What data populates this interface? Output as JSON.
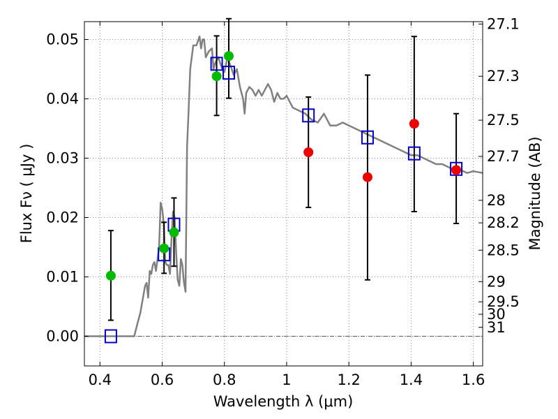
{
  "chart_data": {
    "type": "scatter",
    "xlabel": "Wavelength  λ (μm)",
    "ylabel": "Flux  Fν  ( μJy )",
    "ylabel_right": "Magnitude (AB)",
    "xlim": [
      0.35,
      1.63
    ],
    "ylim": [
      -0.005,
      0.053
    ],
    "grid": true,
    "x_ticks": [
      0.4,
      0.6,
      0.8,
      1.0,
      1.2,
      1.4,
      1.6
    ],
    "x_tick_labels": [
      "0.4",
      "0.6",
      "0.8",
      "1",
      "1.2",
      "1.4",
      "1.6"
    ],
    "y_ticks": [
      0.0,
      0.01,
      0.02,
      0.03,
      0.04,
      0.05
    ],
    "y_tick_labels": [
      "0.00",
      "0.01",
      "0.02",
      "0.03",
      "0.04",
      "0.05"
    ],
    "right_ticks": [
      {
        "label": "27.1",
        "flux": 0.0526
      },
      {
        "label": "27.3",
        "flux": 0.0438
      },
      {
        "label": "27.5",
        "flux": 0.0364
      },
      {
        "label": "27.7",
        "flux": 0.0303
      },
      {
        "label": "28",
        "flux": 0.0229
      },
      {
        "label": "28.2",
        "flux": 0.0191
      },
      {
        "label": "28.5",
        "flux": 0.0145
      },
      {
        "label": "29",
        "flux": 0.0092
      },
      {
        "label": "29.5",
        "flux": 0.0058
      },
      {
        "label": "30",
        "flux": 0.0037
      },
      {
        "label": "31",
        "flux": 0.0015
      }
    ],
    "zero_line": 0.0,
    "colors": {
      "model": "#808080",
      "model_box": "#0000cc",
      "green": "#00bb00",
      "red": "#ee0000",
      "errorbar": "#000000",
      "grid": "#888888"
    },
    "model_sed": [
      [
        0.35,
        0.0
      ],
      [
        0.5,
        0.0
      ],
      [
        0.51,
        0.0
      ],
      [
        0.52,
        0.002
      ],
      [
        0.53,
        0.004
      ],
      [
        0.545,
        0.0085
      ],
      [
        0.55,
        0.009
      ],
      [
        0.555,
        0.0065
      ],
      [
        0.56,
        0.011
      ],
      [
        0.565,
        0.0105
      ],
      [
        0.57,
        0.012
      ],
      [
        0.575,
        0.0125
      ],
      [
        0.58,
        0.011
      ],
      [
        0.59,
        0.015
      ],
      [
        0.595,
        0.0225
      ],
      [
        0.6,
        0.0215
      ],
      [
        0.605,
        0.019
      ],
      [
        0.61,
        0.0125
      ],
      [
        0.615,
        0.012
      ],
      [
        0.62,
        0.012
      ],
      [
        0.625,
        0.0105
      ],
      [
        0.63,
        0.0165
      ],
      [
        0.635,
        0.021
      ],
      [
        0.64,
        0.02
      ],
      [
        0.645,
        0.014
      ],
      [
        0.65,
        0.0095
      ],
      [
        0.655,
        0.0085
      ],
      [
        0.66,
        0.013
      ],
      [
        0.665,
        0.012
      ],
      [
        0.67,
        0.009
      ],
      [
        0.675,
        0.0075
      ],
      [
        0.68,
        0.032
      ],
      [
        0.685,
        0.038
      ],
      [
        0.69,
        0.045
      ],
      [
        0.7,
        0.049
      ],
      [
        0.71,
        0.049
      ],
      [
        0.72,
        0.0505
      ],
      [
        0.725,
        0.0485
      ],
      [
        0.73,
        0.05
      ],
      [
        0.735,
        0.05
      ],
      [
        0.74,
        0.047
      ],
      [
        0.75,
        0.048
      ],
      [
        0.76,
        0.0485
      ],
      [
        0.765,
        0.045
      ],
      [
        0.77,
        0.046
      ],
      [
        0.78,
        0.047
      ],
      [
        0.79,
        0.0455
      ],
      [
        0.8,
        0.0445
      ],
      [
        0.81,
        0.047
      ],
      [
        0.82,
        0.0455
      ],
      [
        0.83,
        0.044
      ],
      [
        0.84,
        0.045
      ],
      [
        0.85,
        0.042
      ],
      [
        0.86,
        0.04
      ],
      [
        0.865,
        0.0375
      ],
      [
        0.87,
        0.041
      ],
      [
        0.88,
        0.042
      ],
      [
        0.89,
        0.0415
      ],
      [
        0.9,
        0.0405
      ],
      [
        0.91,
        0.0415
      ],
      [
        0.92,
        0.0405
      ],
      [
        0.93,
        0.0415
      ],
      [
        0.94,
        0.0425
      ],
      [
        0.95,
        0.0415
      ],
      [
        0.96,
        0.0395
      ],
      [
        0.97,
        0.041
      ],
      [
        0.98,
        0.04
      ],
      [
        0.99,
        0.04
      ],
      [
        1.0,
        0.0405
      ],
      [
        1.01,
        0.0395
      ],
      [
        1.02,
        0.0385
      ],
      [
        1.04,
        0.038
      ],
      [
        1.06,
        0.0375
      ],
      [
        1.08,
        0.0365
      ],
      [
        1.1,
        0.036
      ],
      [
        1.12,
        0.0375
      ],
      [
        1.14,
        0.0355
      ],
      [
        1.16,
        0.0355
      ],
      [
        1.18,
        0.036
      ],
      [
        1.2,
        0.0355
      ],
      [
        1.22,
        0.035
      ],
      [
        1.24,
        0.0345
      ],
      [
        1.26,
        0.034
      ],
      [
        1.3,
        0.033
      ],
      [
        1.32,
        0.0325
      ],
      [
        1.34,
        0.032
      ],
      [
        1.36,
        0.0315
      ],
      [
        1.38,
        0.031
      ],
      [
        1.4,
        0.0305
      ],
      [
        1.42,
        0.0305
      ],
      [
        1.44,
        0.03
      ],
      [
        1.46,
        0.0295
      ],
      [
        1.48,
        0.029
      ],
      [
        1.5,
        0.029
      ],
      [
        1.52,
        0.0285
      ],
      [
        1.54,
        0.028
      ],
      [
        1.56,
        0.028
      ],
      [
        1.58,
        0.0275
      ],
      [
        1.6,
        0.0278
      ],
      [
        1.63,
        0.0275
      ]
    ],
    "model_photometry": [
      {
        "x": 0.435,
        "y": 0.0
      },
      {
        "x": 0.606,
        "y": 0.0138
      },
      {
        "x": 0.638,
        "y": 0.0188
      },
      {
        "x": 0.775,
        "y": 0.0459
      },
      {
        "x": 0.814,
        "y": 0.0444
      },
      {
        "x": 1.07,
        "y": 0.0372
      },
      {
        "x": 1.26,
        "y": 0.0335
      },
      {
        "x": 1.41,
        "y": 0.0308
      },
      {
        "x": 1.545,
        "y": 0.0282
      }
    ],
    "observed_green": [
      {
        "x": 0.435,
        "y": 0.0102,
        "lo": 0.0027,
        "hi": 0.0178
      },
      {
        "x": 0.606,
        "y": 0.0148,
        "lo": 0.0106,
        "hi": 0.0192
      },
      {
        "x": 0.638,
        "y": 0.0175,
        "lo": 0.0118,
        "hi": 0.0233
      },
      {
        "x": 0.775,
        "y": 0.0438,
        "lo": 0.0372,
        "hi": 0.0506
      },
      {
        "x": 0.814,
        "y": 0.0472,
        "lo": 0.0401,
        "hi": 0.0535
      }
    ],
    "observed_red": [
      {
        "x": 1.07,
        "y": 0.031,
        "lo": 0.0217,
        "hi": 0.0403
      },
      {
        "x": 1.26,
        "y": 0.0268,
        "lo": 0.0095,
        "hi": 0.044
      },
      {
        "x": 1.41,
        "y": 0.0358,
        "lo": 0.021,
        "hi": 0.0505
      },
      {
        "x": 1.545,
        "y": 0.028,
        "lo": 0.019,
        "hi": 0.0375
      }
    ]
  }
}
